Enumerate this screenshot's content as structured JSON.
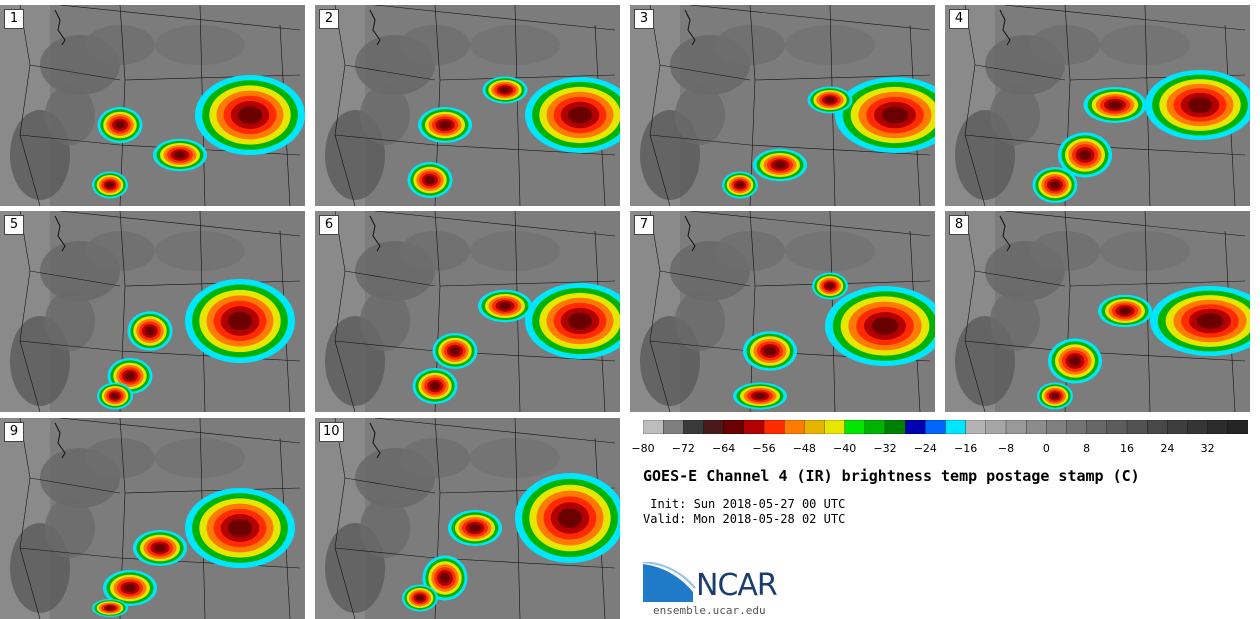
{
  "panels": [
    {
      "label": "1"
    },
    {
      "label": "2"
    },
    {
      "label": "3"
    },
    {
      "label": "4"
    },
    {
      "label": "5"
    },
    {
      "label": "6"
    },
    {
      "label": "7"
    },
    {
      "label": "8"
    },
    {
      "label": "9"
    },
    {
      "label": "10"
    }
  ],
  "colorbar": {
    "ticks": [
      "−80",
      "−72",
      "−64",
      "−56",
      "−48",
      "−40",
      "−32",
      "−24",
      "−16",
      "−8",
      "0",
      "8",
      "16",
      "24",
      "32"
    ],
    "min": -80,
    "max": 40,
    "step": 4,
    "colors": [
      "#bdbdbd",
      "#7f7f7f",
      "#3a3a3a",
      "#4a1a1a",
      "#6b0000",
      "#b30000",
      "#ff2a00",
      "#ff7a00",
      "#e6b400",
      "#e6e600",
      "#00e600",
      "#00b300",
      "#008000",
      "#0000b3",
      "#0066ff",
      "#00e6ff",
      "#b3b3b3",
      "#a6a6a6",
      "#999999",
      "#8c8c8c",
      "#808080",
      "#737373",
      "#666666",
      "#5c5c5c",
      "#525252",
      "#484848",
      "#3e3e3e",
      "#353535",
      "#2c2c2c",
      "#242424"
    ]
  },
  "title": "GOES-E Channel 4 (IR) brightness temp postage stamp (C)",
  "init": " Init: Sun 2018-05-27 00 UTC",
  "valid": "Valid: Mon 2018-05-28 02 UTC",
  "logo": {
    "text": "NCAR",
    "brand_color": "#1a3d6d",
    "swoosh_color": "#1f7bc8",
    "icon": "ncar-swoosh-icon"
  },
  "url": "ensemble.ucar.edu"
}
